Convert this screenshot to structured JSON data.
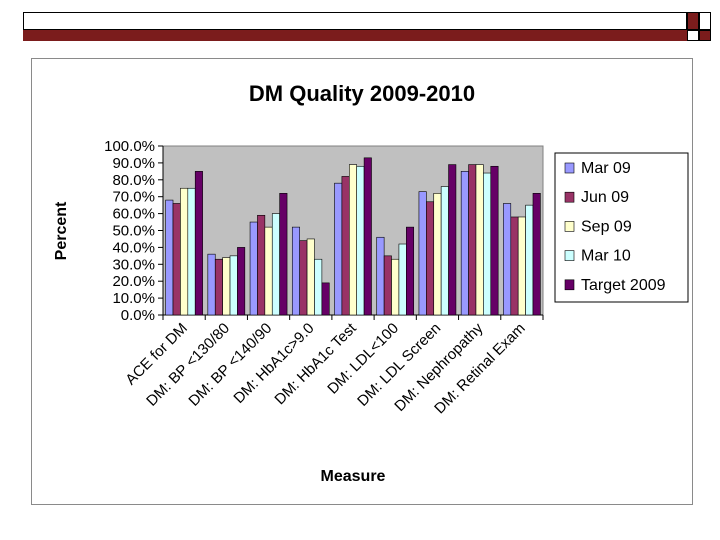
{
  "chart_data": {
    "type": "bar",
    "title": "DM Quality 2009-2010",
    "xlabel": "Measure",
    "ylabel": "Percent",
    "ylim": [
      0,
      100
    ],
    "ytick_step": 10,
    "ytick_labels": [
      "0.0%",
      "10.0%",
      "20.0%",
      "30.0%",
      "40.0%",
      "50.0%",
      "60.0%",
      "70.0%",
      "80.0%",
      "90.0%",
      "100.0%"
    ],
    "grid": false,
    "legend_position": "right",
    "categories": [
      "ACE for DM",
      "DM: BP <130/80",
      "DM: BP <140/90",
      "DM: HbA1c>9.0",
      "DM: HbA1c Test",
      "DM: LDL<100",
      "DM: LDL Screen",
      "DM: Nephropathy",
      "DM: Retinal Exam"
    ],
    "series": [
      {
        "name": "Mar 09",
        "color": "#9999ff",
        "values": [
          68,
          36,
          55,
          52,
          78,
          46,
          73,
          85,
          66
        ]
      },
      {
        "name": "Jun 09",
        "color": "#993366",
        "values": [
          66,
          33,
          59,
          44,
          82,
          35,
          67,
          89,
          58
        ]
      },
      {
        "name": "Sep 09",
        "color": "#ffffcc",
        "values": [
          75,
          34,
          52,
          45,
          89,
          33,
          72,
          89,
          58
        ]
      },
      {
        "name": "Mar 10",
        "color": "#ccffff",
        "values": [
          75,
          35,
          60,
          33,
          88,
          42,
          76,
          84,
          65
        ]
      },
      {
        "name": "Target 2009",
        "color": "#660066",
        "values": [
          85,
          40,
          72,
          19,
          93,
          52,
          89,
          88,
          72
        ]
      }
    ]
  }
}
